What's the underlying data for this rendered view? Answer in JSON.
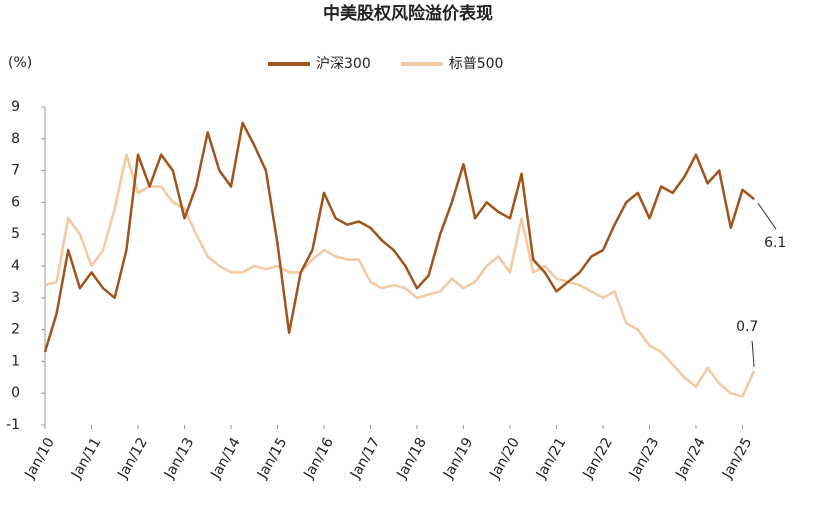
{
  "chart_data": {
    "type": "line",
    "title": "中美股权风险溢价表现",
    "y_label": "(%)",
    "x": [
      2010,
      2010.25,
      2010.5,
      2010.75,
      2011,
      2011.25,
      2011.5,
      2011.75,
      2012,
      2012.25,
      2012.5,
      2012.75,
      2013,
      2013.25,
      2013.5,
      2013.75,
      2014,
      2014.25,
      2014.5,
      2014.75,
      2015,
      2015.25,
      2015.5,
      2015.75,
      2016,
      2016.25,
      2016.5,
      2016.75,
      2017,
      2017.25,
      2017.5,
      2017.75,
      2018,
      2018.25,
      2018.5,
      2018.75,
      2019,
      2019.25,
      2019.5,
      2019.75,
      2020,
      2020.25,
      2020.5,
      2020.75,
      2021,
      2021.25,
      2021.5,
      2021.75,
      2022,
      2022.25,
      2022.5,
      2022.75,
      2023,
      2023.25,
      2023.5,
      2023.75,
      2024,
      2024.25,
      2024.5,
      2024.75,
      2025,
      2025.25
    ],
    "series": [
      {
        "name": "沪深300",
        "color": "#a0541c",
        "values": [
          1.3,
          2.5,
          4.5,
          3.3,
          3.8,
          3.3,
          3.0,
          4.5,
          7.5,
          6.5,
          7.5,
          7.0,
          5.5,
          6.5,
          8.2,
          7.0,
          6.5,
          8.5,
          7.8,
          7.0,
          4.7,
          1.9,
          3.8,
          4.5,
          6.3,
          5.5,
          5.3,
          5.4,
          5.2,
          4.8,
          4.5,
          4.0,
          3.3,
          3.7,
          5.0,
          6.0,
          7.2,
          5.5,
          6.0,
          5.7,
          5.5,
          6.9,
          4.2,
          3.8,
          3.2,
          3.5,
          3.8,
          4.3,
          4.5,
          5.3,
          6.0,
          6.3,
          5.5,
          6.5,
          6.3,
          6.8,
          7.5,
          6.6,
          7.0,
          5.2,
          6.4,
          6.1
        ]
      },
      {
        "name": "标普500",
        "color": "#f2c9a0",
        "values": [
          3.4,
          3.5,
          5.5,
          5.0,
          4.0,
          4.5,
          5.8,
          7.5,
          6.3,
          6.5,
          6.5,
          6.0,
          5.8,
          5.0,
          4.3,
          4.0,
          3.8,
          3.8,
          4.0,
          3.9,
          4.0,
          3.8,
          3.8,
          4.2,
          4.5,
          4.3,
          4.2,
          4.2,
          3.5,
          3.3,
          3.4,
          3.3,
          3.0,
          3.1,
          3.2,
          3.6,
          3.3,
          3.5,
          4.0,
          4.3,
          3.8,
          5.5,
          3.8,
          4.0,
          3.6,
          3.5,
          3.4,
          3.2,
          3.0,
          3.2,
          2.2,
          2.0,
          1.5,
          1.3,
          0.9,
          0.5,
          0.2,
          0.8,
          0.3,
          0.0,
          -0.1,
          0.7
        ]
      }
    ],
    "xlim": [
      2010,
      2025.7
    ],
    "xticks": [
      {
        "value": 2010,
        "label": "Jan/10"
      },
      {
        "value": 2011,
        "label": "Jan/11"
      },
      {
        "value": 2012,
        "label": "Jan/12"
      },
      {
        "value": 2013,
        "label": "Jan/13"
      },
      {
        "value": 2014,
        "label": "Jan/14"
      },
      {
        "value": 2015,
        "label": "Jan/15"
      },
      {
        "value": 2016,
        "label": "Jan/16"
      },
      {
        "value": 2017,
        "label": "Jan/17"
      },
      {
        "value": 2018,
        "label": "Jan/18"
      },
      {
        "value": 2019,
        "label": "Jan/19"
      },
      {
        "value": 2020,
        "label": "Jan/20"
      },
      {
        "value": 2021,
        "label": "Jan/21"
      },
      {
        "value": 2022,
        "label": "Jan/22"
      },
      {
        "value": 2023,
        "label": "Jan/23"
      },
      {
        "value": 2024,
        "label": "Jan/24"
      },
      {
        "value": 2025,
        "label": "Jan/25"
      }
    ],
    "ylim": [
      -1,
      9
    ],
    "yticks": [
      -1,
      0,
      1,
      2,
      3,
      4,
      5,
      6,
      7,
      8,
      9
    ],
    "grid": false,
    "legend": "top"
  }
}
